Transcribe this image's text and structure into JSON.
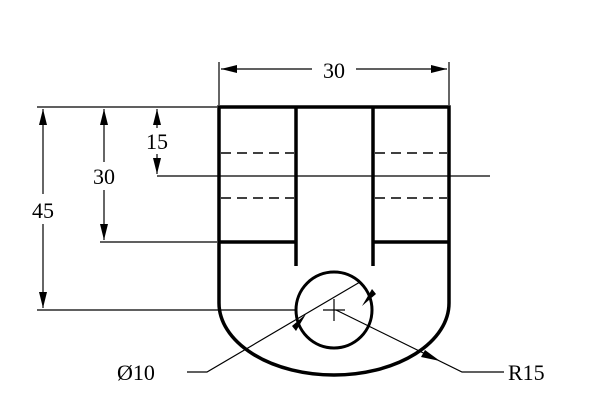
{
  "dimensions": {
    "width_top": "30",
    "height_15": "15",
    "height_30": "30",
    "height_45": "45",
    "hole_diameter": "Ø10",
    "outer_radius": "R15"
  },
  "colors": {
    "line": "#000000",
    "background": "#ffffff"
  }
}
